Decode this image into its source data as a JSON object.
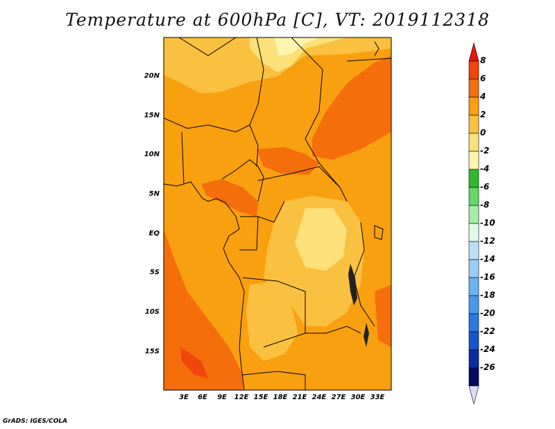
{
  "title": "Temperature at 600hPa [C], VT: 2019112318",
  "credit": "GrADS: IGES/COLA",
  "map": {
    "lat_labels": [
      "20N",
      "15N",
      "10N",
      "5N",
      "EQ",
      "5S",
      "10S",
      "15S"
    ],
    "lon_labels": [
      "3E",
      "6E",
      "9E",
      "12E",
      "15E",
      "18E",
      "21E",
      "24E",
      "27E",
      "30E",
      "33E"
    ]
  },
  "colorbar": {
    "labels": [
      "8",
      "6",
      "4",
      "2",
      "0",
      "-2",
      "-4",
      "-6",
      "-8",
      "-10",
      "-12",
      "-14",
      "-16",
      "-18",
      "-20",
      "-22",
      "-24",
      "-26"
    ],
    "colors": [
      "#e8140a",
      "#f0460a",
      "#f46e0c",
      "#f8a010",
      "#fac040",
      "#fce07a",
      "#fef5b0",
      "#2eb82e",
      "#66d666",
      "#a6eea6",
      "#e0fae8",
      "#bde0f8",
      "#96cef6",
      "#6ab4f2",
      "#4a98ec",
      "#2a78e0",
      "#1656c8",
      "#0a2ea0",
      "#060a60",
      "#dcdcf6"
    ]
  }
}
